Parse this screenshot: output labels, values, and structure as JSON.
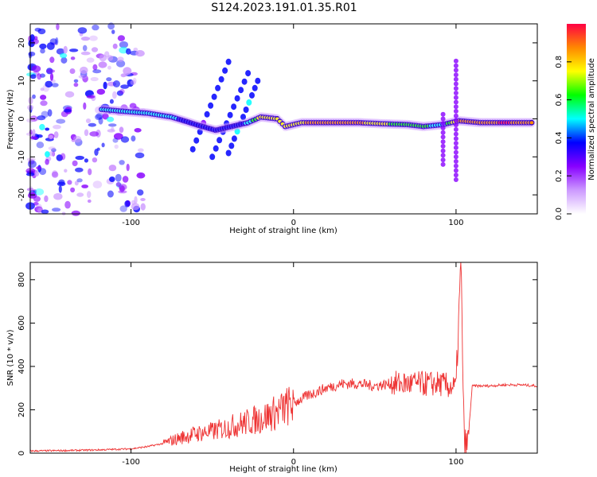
{
  "chart_data": [
    {
      "type": "heatmap",
      "title": "S124.2023.191.01.35.R01",
      "xlabel": "Height of straight line (km)",
      "ylabel": "Frequency (Hz)",
      "xlim": [
        -162,
        150
      ],
      "ylim": [
        -25,
        25
      ],
      "xticks": [
        -100,
        0,
        100
      ],
      "yticks": [
        20,
        10,
        0,
        -10,
        -20
      ],
      "colorbar": {
        "label": "Normalized spectral amplitude",
        "range": [
          0,
          1
        ],
        "ticks": [
          "0.0",
          "0.2",
          "0.4",
          "0.6",
          "0.8"
        ],
        "colors": [
          "#ffffff",
          "#cc99ff",
          "#8800ff",
          "#0000ff",
          "#00ffff",
          "#00ff00",
          "#ffff00",
          "#ff8800",
          "#ff0044"
        ]
      },
      "ridge": [
        {
          "x": -118,
          "f": 2.5,
          "amp": 0.45
        },
        {
          "x": -105,
          "f": 2.0,
          "amp": 0.45
        },
        {
          "x": -90,
          "f": 1.5,
          "amp": 0.5
        },
        {
          "x": -75,
          "f": 0.5,
          "amp": 0.45
        },
        {
          "x": -60,
          "f": -1.5,
          "amp": 0.4
        },
        {
          "x": -48,
          "f": -3.0,
          "amp": 0.35
        },
        {
          "x": -38,
          "f": -2.0,
          "amp": 0.4
        },
        {
          "x": -28,
          "f": -1.0,
          "amp": 0.45
        },
        {
          "x": -20,
          "f": 0.5,
          "amp": 0.75
        },
        {
          "x": -10,
          "f": 0.0,
          "amp": 0.7
        },
        {
          "x": -5,
          "f": -2.0,
          "amp": 0.75
        },
        {
          "x": 5,
          "f": -1.0,
          "amp": 0.8
        },
        {
          "x": 20,
          "f": -1.0,
          "amp": 0.9
        },
        {
          "x": 40,
          "f": -1.0,
          "amp": 0.85
        },
        {
          "x": 55,
          "f": -1.3,
          "amp": 0.7
        },
        {
          "x": 70,
          "f": -1.5,
          "amp": 0.65
        },
        {
          "x": 80,
          "f": -2.0,
          "amp": 0.6
        },
        {
          "x": 92,
          "f": -1.5,
          "amp": 0.5
        },
        {
          "x": 102,
          "f": -0.5,
          "amp": 0.85
        },
        {
          "x": 115,
          "f": -1.0,
          "amp": 0.9
        },
        {
          "x": 130,
          "f": -1.0,
          "amp": 0.95
        },
        {
          "x": 148,
          "f": -1.0,
          "amp": 0.9
        }
      ]
    },
    {
      "type": "line",
      "xlabel": "Height of straight line (km)",
      "ylabel": "SNR (10 * v/v)",
      "xlim": [
        -162,
        150
      ],
      "ylim": [
        0,
        880
      ],
      "xticks": [
        -100,
        0,
        100
      ],
      "yticks": [
        0,
        200,
        400,
        600,
        800
      ],
      "series": [
        {
          "color": "#ee3333",
          "x": [
            -162,
            -140,
            -120,
            -100,
            -90,
            -80,
            -70,
            -60,
            -50,
            -40,
            -30,
            -20,
            -10,
            0,
            10,
            20,
            30,
            40,
            50,
            60,
            70,
            80,
            90,
            100,
            103,
            105,
            107,
            110,
            120,
            130,
            140,
            150
          ],
          "y": [
            10,
            12,
            15,
            20,
            30,
            45,
            70,
            90,
            100,
            120,
            140,
            160,
            190,
            230,
            270,
            300,
            320,
            320,
            310,
            320,
            320,
            320,
            320,
            300,
            880,
            50,
            30,
            310,
            310,
            315,
            315,
            310
          ]
        }
      ]
    }
  ]
}
